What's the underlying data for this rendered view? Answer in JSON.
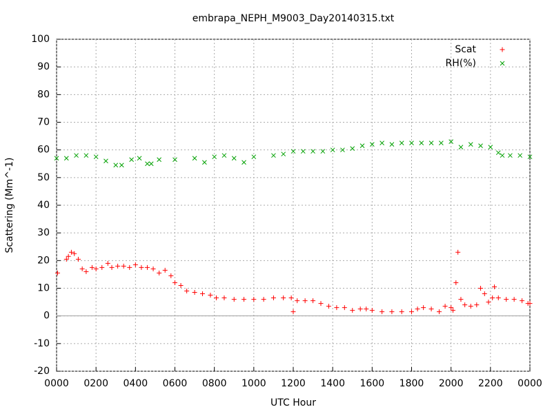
{
  "chart_data": {
    "type": "scatter",
    "title": "embrapa_NEPH_M9003_Day20140315.txt",
    "xlabel": "UTC Hour",
    "ylabel": "Scattering (Mm^-1)",
    "xlim": [
      0,
      24
    ],
    "ylim": [
      -20,
      100
    ],
    "xticks": [
      {
        "value": 0,
        "label": "0000"
      },
      {
        "value": 2,
        "label": "0200"
      },
      {
        "value": 4,
        "label": "0400"
      },
      {
        "value": 6,
        "label": "0600"
      },
      {
        "value": 8,
        "label": "0800"
      },
      {
        "value": 10,
        "label": "1000"
      },
      {
        "value": 12,
        "label": "1200"
      },
      {
        "value": 14,
        "label": "1400"
      },
      {
        "value": 16,
        "label": "1600"
      },
      {
        "value": 18,
        "label": "1800"
      },
      {
        "value": 20,
        "label": "2000"
      },
      {
        "value": 22,
        "label": "2200"
      },
      {
        "value": 24,
        "label": "0000"
      }
    ],
    "yticks": [
      -20,
      -10,
      0,
      10,
      20,
      30,
      40,
      50,
      60,
      70,
      80,
      90,
      100
    ],
    "grid": true,
    "legend": "top-right",
    "series": [
      {
        "name": "Scat",
        "color": "#ff0000",
        "marker": "plus",
        "x": [
          0.05,
          0.5,
          0.6,
          0.75,
          0.9,
          1.1,
          1.3,
          1.5,
          1.8,
          2.0,
          2.3,
          2.6,
          2.8,
          3.1,
          3.4,
          3.7,
          4.0,
          4.3,
          4.6,
          4.9,
          5.2,
          5.5,
          5.8,
          6.0,
          6.3,
          6.6,
          7.0,
          7.4,
          7.8,
          8.1,
          8.5,
          9.0,
          9.5,
          10,
          10.5,
          11,
          11.5,
          11.9,
          12.0,
          12.2,
          12.6,
          13,
          13.4,
          13.8,
          14.2,
          14.6,
          15,
          15.4,
          15.7,
          16.0,
          16.5,
          17,
          17.5,
          18,
          18.3,
          18.6,
          19,
          19.4,
          19.7,
          20,
          20.1,
          20.25,
          20.35,
          20.5,
          20.7,
          21,
          21.3,
          21.5,
          21.7,
          21.9,
          22.1,
          22.2,
          22.4,
          22.8,
          23.2,
          23.6,
          23.9,
          24
        ],
        "values": [
          15.5,
          20.5,
          21.5,
          23,
          22.5,
          20.5,
          17,
          16,
          17.5,
          17,
          17.5,
          19,
          17.5,
          18,
          18,
          17.5,
          18.5,
          17.5,
          17.5,
          17,
          15.5,
          16.5,
          14.5,
          12,
          11,
          9,
          8.5,
          8,
          7.5,
          6.5,
          6.5,
          6,
          6,
          6,
          6,
          6.5,
          6.5,
          6.5,
          1.5,
          5.5,
          5.5,
          5.5,
          4.5,
          3.5,
          3,
          3,
          2,
          2.5,
          2.5,
          2,
          1.5,
          1.5,
          1.5,
          1.5,
          2.5,
          3,
          2.5,
          1.5,
          3.5,
          3,
          2,
          12,
          23,
          6,
          4,
          3.5,
          4,
          10,
          8,
          5,
          6.5,
          10.5,
          6.5,
          6,
          6,
          5.5,
          4.5,
          4.5
        ]
      },
      {
        "name": "RH(%)",
        "color": "#00a000",
        "marker": "cross",
        "x": [
          0,
          0.5,
          1,
          1.5,
          2,
          2.5,
          3,
          3.3,
          3.8,
          4.2,
          4.6,
          4.8,
          5.2,
          6,
          7,
          7.5,
          8,
          8.5,
          9,
          9.5,
          10,
          11,
          11.5,
          12,
          12.5,
          13,
          13.5,
          14,
          14.5,
          15,
          15.5,
          16,
          16.5,
          17,
          17.5,
          18,
          18.5,
          19,
          19.5,
          20,
          20.5,
          21,
          21.5,
          22,
          22.4,
          22.6,
          23,
          23.5,
          24
        ],
        "values": [
          57,
          57,
          58,
          58,
          57.5,
          56,
          54.5,
          54.5,
          56.5,
          57,
          55,
          55,
          56.5,
          56.5,
          57,
          55.5,
          57.5,
          58,
          57,
          55.5,
          57.5,
          58,
          58.5,
          59.5,
          59.5,
          59.5,
          59.5,
          60,
          60,
          60.5,
          61.5,
          62,
          62.5,
          62,
          62.5,
          62.5,
          62.5,
          62.5,
          62.5,
          63,
          61,
          62,
          61.5,
          61,
          59,
          58,
          58,
          58,
          57.5
        ]
      }
    ]
  }
}
